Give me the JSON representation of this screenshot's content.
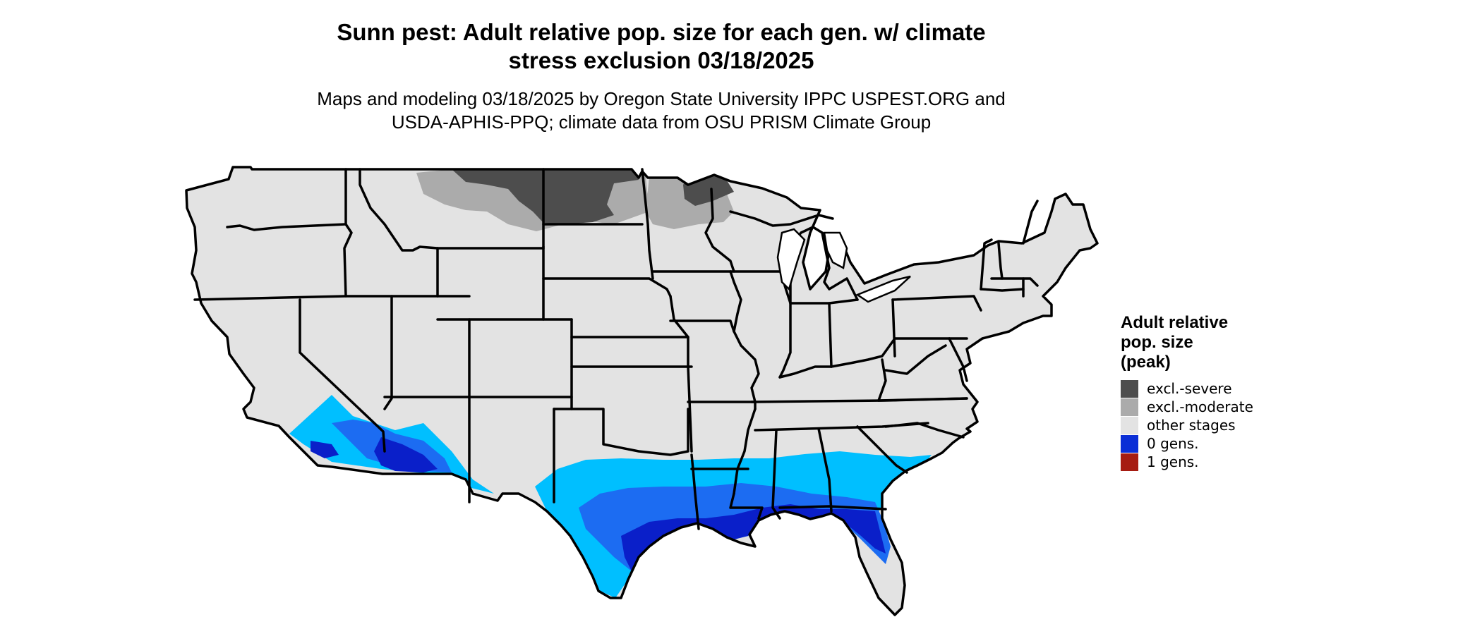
{
  "title": {
    "line1": "Sunn pest: Adult relative pop. size for each gen. w/ climate",
    "line2": "stress exclusion 03/18/2025"
  },
  "subtitle": {
    "line1": "Maps and modeling 03/18/2025 by Oregon State University IPPC USPEST.ORG and",
    "line2": "USDA-APHIS-PPQ; climate data from OSU PRISM Climate Group"
  },
  "legend": {
    "title_lines": [
      "Adult relative",
      "pop. size",
      "(peak)"
    ],
    "items": [
      {
        "label": "excl.-severe",
        "color": "#4d4d4d"
      },
      {
        "label": "excl.-moderate",
        "color": "#ababab"
      },
      {
        "label": "other stages",
        "color": "#e3e3e3"
      },
      {
        "label": "0 gens.",
        "color": "#0a2ed6"
      },
      {
        "label": "1 gens.",
        "color": "#a61c12"
      }
    ]
  },
  "map_colors": {
    "land": "#e3e3e3",
    "border": "#000000",
    "excl_severe": "#4d4d4d",
    "excl_moderate": "#ababab",
    "zero_gens_light": "#00bfff",
    "zero_gens_mid": "#1c6cf2",
    "zero_gens_dark": "#0a1fc9"
  }
}
